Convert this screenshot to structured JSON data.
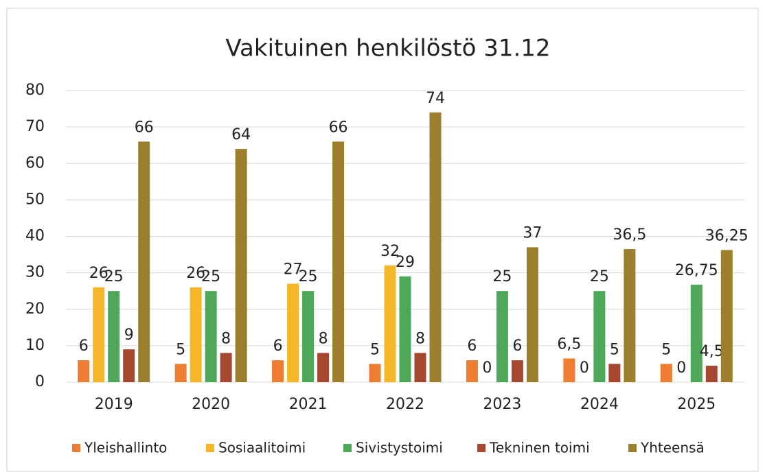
{
  "chart_data": {
    "type": "bar",
    "title": "Vakituinen henkilöstö 31.12",
    "categories": [
      "2019",
      "2020",
      "2021",
      "2022",
      "2023",
      "2024",
      "2025"
    ],
    "series": [
      {
        "name": "Yleishallinto",
        "color": "#ed7d31",
        "values": [
          6,
          5,
          6,
          5,
          6,
          6.5,
          5
        ],
        "value_labels": [
          "6",
          "5",
          "6",
          "5",
          "6",
          "6,5",
          "5"
        ]
      },
      {
        "name": "Sosiaalitoimi",
        "color": "#f5b629",
        "values": [
          26,
          26,
          27,
          32,
          0,
          0,
          0
        ],
        "value_labels": [
          "26",
          "26",
          "27",
          "32",
          "0",
          "0",
          "0"
        ]
      },
      {
        "name": "Sivistystoimi",
        "color": "#4ea85a",
        "values": [
          25,
          25,
          25,
          29,
          25,
          25,
          26.75
        ],
        "value_labels": [
          "25",
          "25",
          "25",
          "29",
          "25",
          "25",
          "26,75"
        ]
      },
      {
        "name": "Tekninen toimi",
        "color": "#a5482f",
        "values": [
          9,
          8,
          8,
          8,
          6,
          5,
          4.5
        ],
        "value_labels": [
          "9",
          "8",
          "8",
          "8",
          "6",
          "5",
          "4,5"
        ]
      },
      {
        "name": "Yhteensä",
        "color": "#9c7e2c",
        "values": [
          66,
          64,
          66,
          74,
          37,
          36.5,
          36.25
        ],
        "value_labels": [
          "66",
          "64",
          "66",
          "74",
          "37",
          "36,5",
          "36,25"
        ]
      }
    ],
    "ylim": [
      0,
      80
    ],
    "yticks": [
      0,
      10,
      20,
      30,
      40,
      50,
      60,
      70,
      80
    ],
    "grid": true,
    "legend": "bottom"
  }
}
